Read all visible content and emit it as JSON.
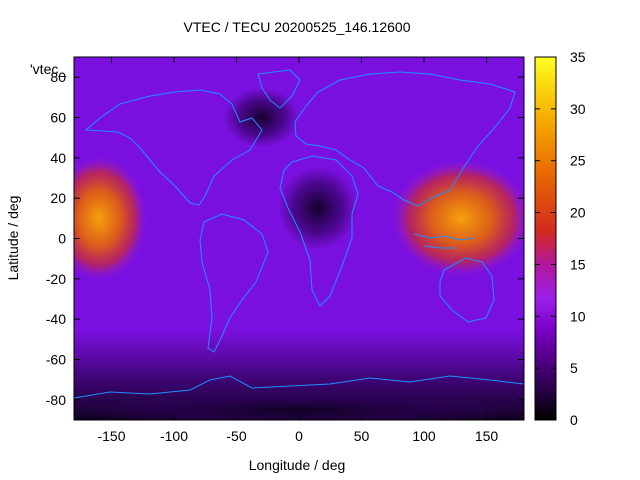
{
  "chart_data": {
    "type": "heatmap",
    "title": "VTEC / TECU 20200525_146.12600",
    "xlabel": "Longitude / deg",
    "ylabel": "Latitude / deg",
    "series_key": "'vtec_",
    "xlim": [
      -180,
      180
    ],
    "ylim": [
      -90,
      90
    ],
    "xticks": [
      -150,
      -100,
      -50,
      0,
      50,
      100,
      150
    ],
    "yticks": [
      -80,
      -60,
      -40,
      -20,
      0,
      20,
      40,
      60,
      80
    ],
    "colorbar": {
      "range": [
        0,
        35
      ],
      "ticks": [
        0,
        5,
        10,
        15,
        20,
        25,
        30,
        35
      ],
      "palette": [
        "#000000",
        "#3b0063",
        "#7a00c8",
        "#9a1fe8",
        "#b4169c",
        "#d22a1e",
        "#e86a00",
        "#f6b000",
        "#ffff20"
      ]
    },
    "coastline_color": "#1e90ff",
    "features": [
      {
        "label": "equatorial anomaly over Pacific (west of 180)",
        "lon": -160,
        "lat": 10,
        "value": 23
      },
      {
        "label": "equatorial anomaly over Asia/Pacific",
        "lon": 130,
        "lat": 10,
        "value": 22
      },
      {
        "label": "low over central Africa",
        "lon": 15,
        "lat": 15,
        "value": 2
      },
      {
        "label": "low near northern Atlantic",
        "lon": -30,
        "lat": 60,
        "value": 3
      },
      {
        "label": "low near Antarctica",
        "lon": 0,
        "lat": -85,
        "value": 1
      }
    ]
  }
}
